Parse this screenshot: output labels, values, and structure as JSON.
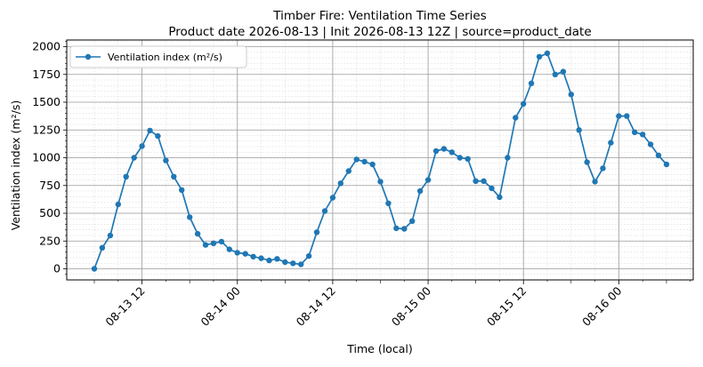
{
  "chart_data": {
    "type": "line",
    "title": "Timber Fire: Ventilation Time Series",
    "subtitle": "Product date 2026-08-13 | Init 2026-08-13 12Z | source=product_date",
    "xlabel": "Time (local)",
    "ylabel": "Ventilation index (m²/s)",
    "x_start": "2026-08-13 06:00",
    "x_step_hours": 1,
    "x_ticks": [
      "08-13 12",
      "08-14 00",
      "08-14 12",
      "08-15 00",
      "08-15 12",
      "08-16 00"
    ],
    "y_ticks": [
      "0",
      "250",
      "500",
      "750",
      "1000",
      "1250",
      "1500",
      "1750",
      "2000"
    ],
    "ylim": [
      -100,
      2060
    ],
    "grid": true,
    "legend_position": "top-left",
    "series": [
      {
        "name": "Ventilation index (m²/s)",
        "color": "#1f77b4",
        "values": [
          0,
          190,
          300,
          580,
          830,
          1000,
          1105,
          1245,
          1195,
          975,
          830,
          710,
          465,
          315,
          215,
          230,
          245,
          175,
          145,
          135,
          110,
          95,
          75,
          90,
          60,
          50,
          40,
          115,
          330,
          520,
          640,
          770,
          880,
          985,
          965,
          940,
          785,
          590,
          365,
          360,
          430,
          700,
          800,
          1060,
          1080,
          1050,
          1000,
          990,
          790,
          790,
          725,
          645,
          1000,
          1360,
          1485,
          1670,
          1910,
          1940,
          1750,
          1775,
          1570,
          1250,
          960,
          785,
          905,
          1135,
          1375,
          1375,
          1230,
          1210,
          1120,
          1020,
          940
        ]
      }
    ]
  }
}
